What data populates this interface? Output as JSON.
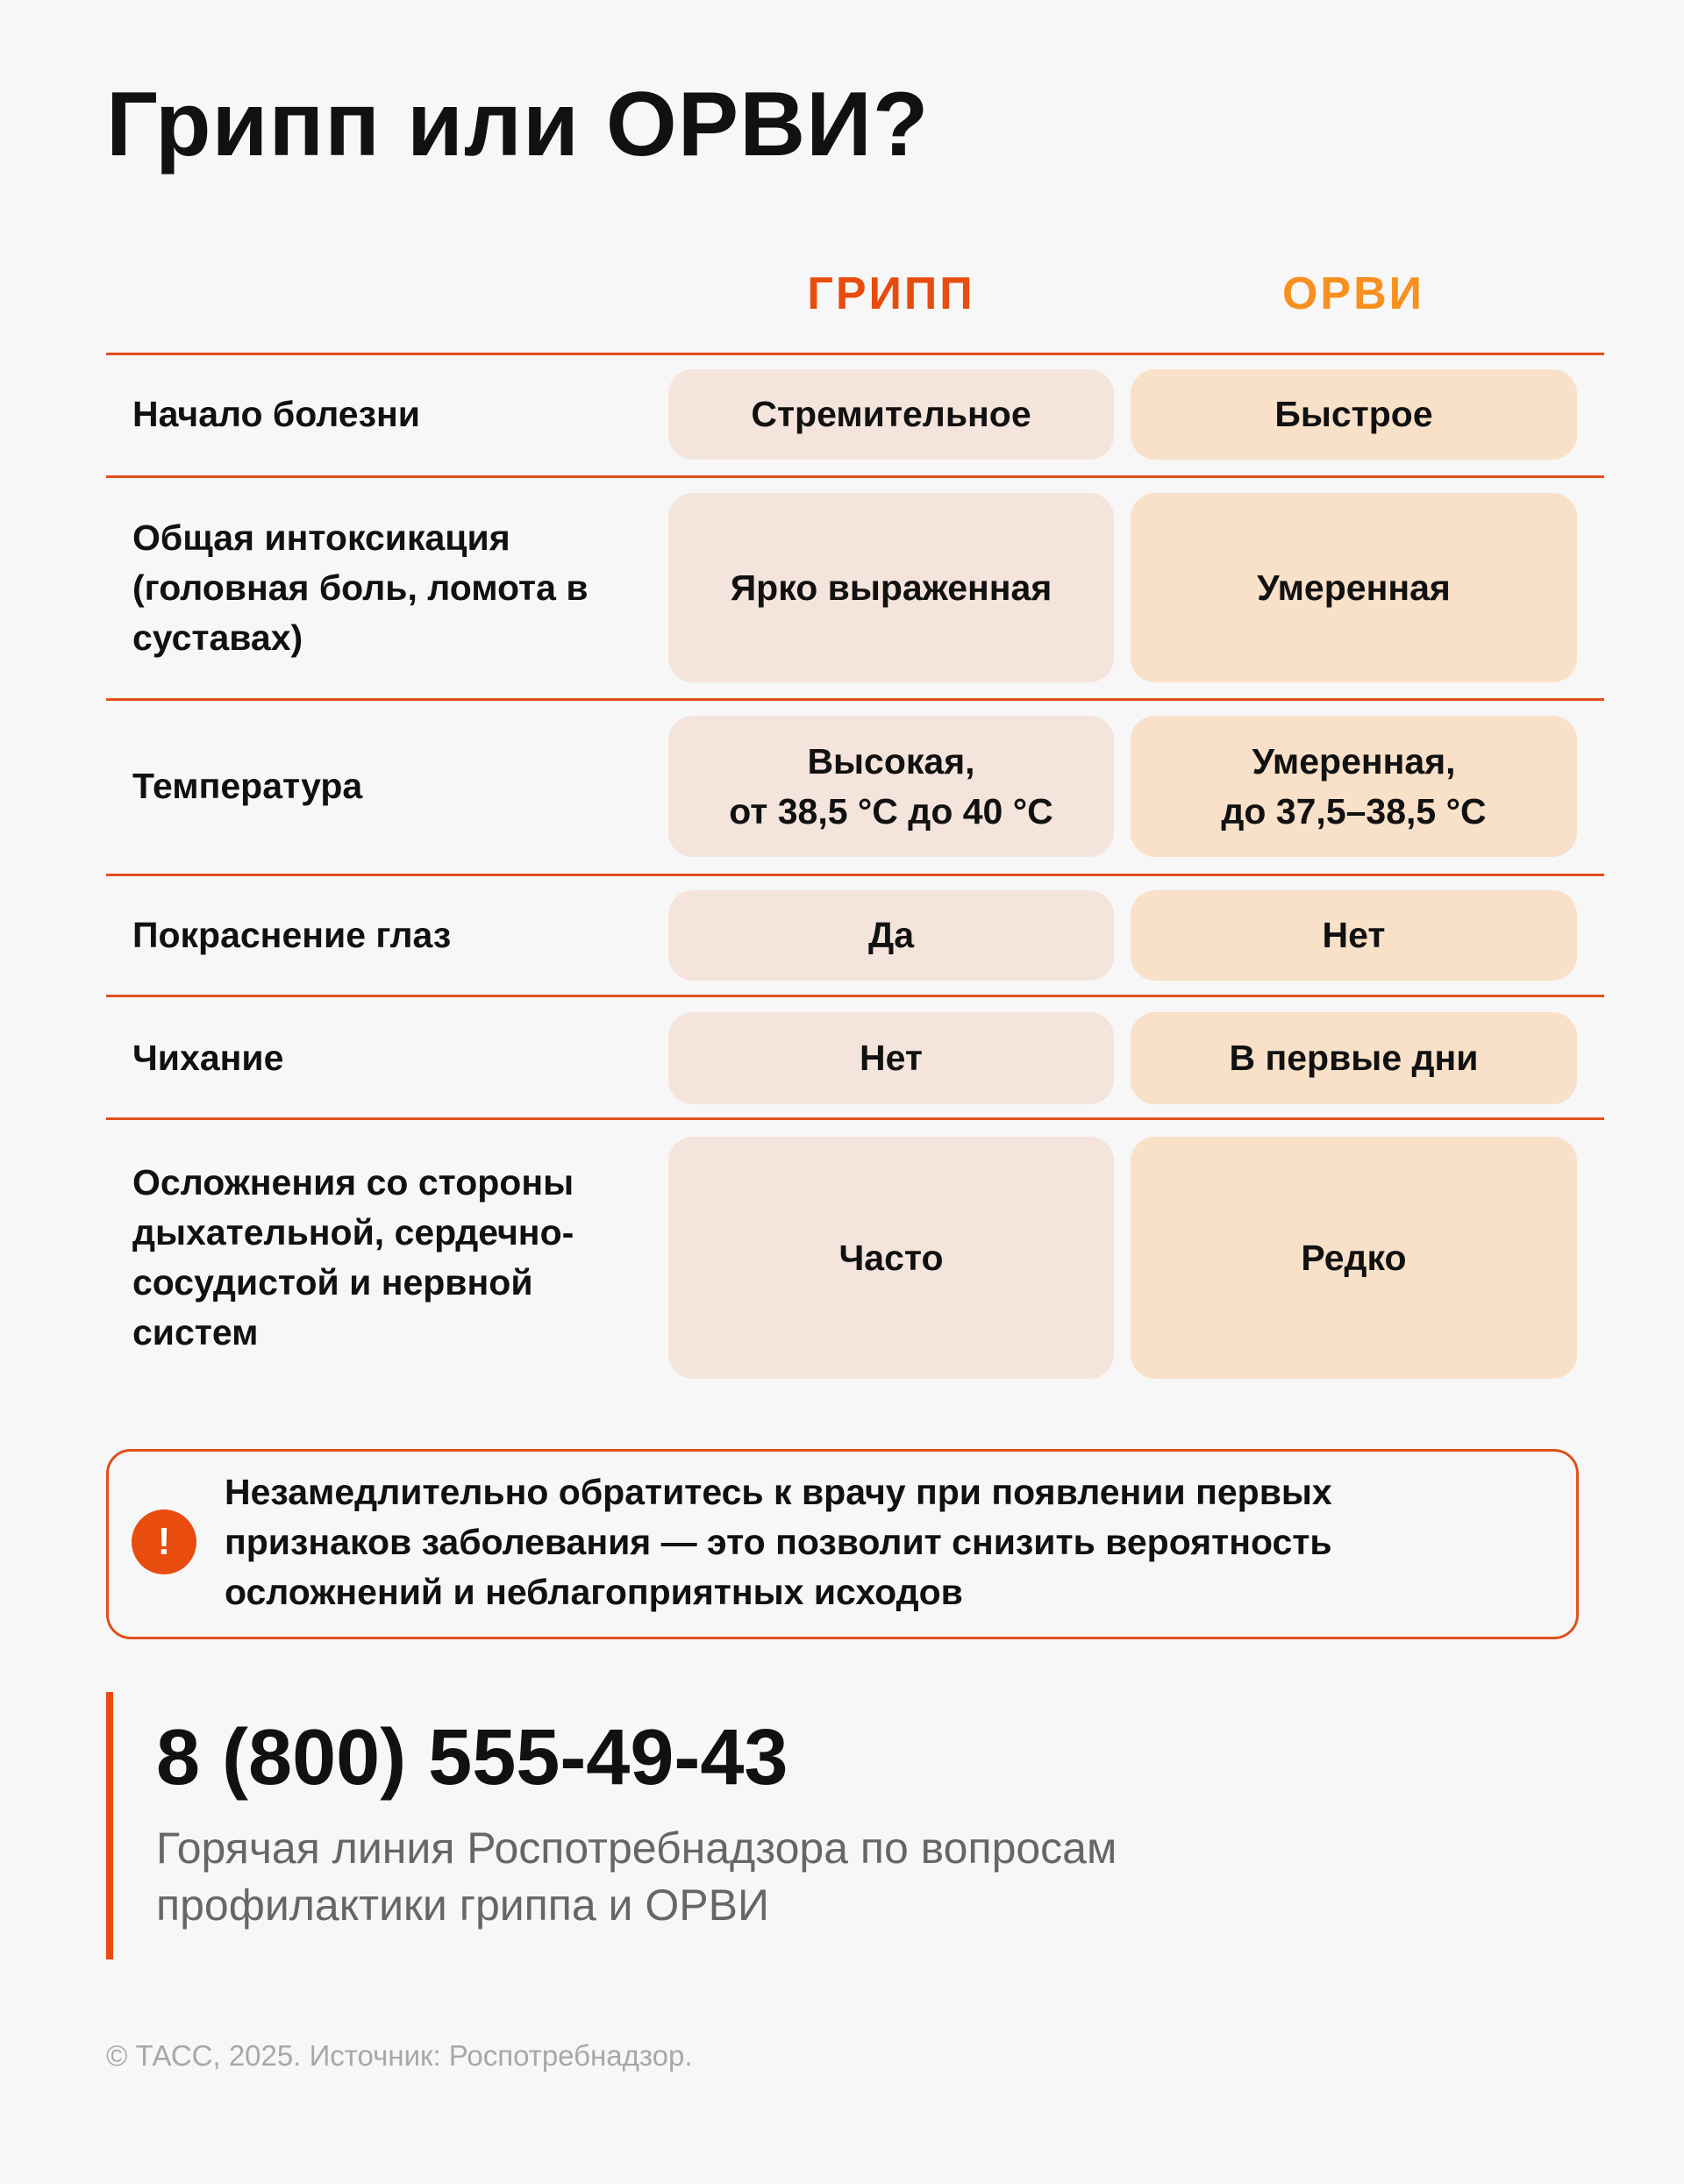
{
  "title": "Грипп или ОРВИ?",
  "columns": {
    "flu": {
      "label": "ГРИПП",
      "color": "#e84c0e",
      "cell_color": "#f5e4dc"
    },
    "arvi": {
      "label": "ОРВИ",
      "color": "#f7901e",
      "cell_color": "#f9e0c8"
    }
  },
  "rows": [
    {
      "label": "Начало болезни",
      "flu": "Стремительное",
      "arvi": "Быстрое"
    },
    {
      "label": "Общая интоксикация (головная боль, ломота в суставах)",
      "flu": "Ярко выраженная",
      "arvi": "Умеренная"
    },
    {
      "label": "Температура",
      "flu": "Высокая,\nот 38,5 °C до 40 °C",
      "arvi": "Умеренная,\nдо 37,5–38,5 °C"
    },
    {
      "label": "Покраснение глаз",
      "flu": "Да",
      "arvi": "Нет"
    },
    {
      "label": "Чихание",
      "flu": "Нет",
      "arvi": "В первые дни"
    },
    {
      "label": "Осложнения со стороны дыхательной, сердечно-сосудистой и нервной систем",
      "flu": "Часто",
      "arvi": "Редко"
    }
  ],
  "alert": {
    "icon": "exclamation-icon",
    "icon_glyph": "!",
    "text": "Незамедлительно обратитесь к врачу при появлении первых признаков заболевания — это позволит снизить вероятность осложнений и неблагоприятных исходов"
  },
  "hotline": {
    "phone": "8 (800) 555-49-43",
    "description": "Горячая линия Роспотребнадзора по вопросам профилактики гриппа и ОРВИ"
  },
  "footer": "© ТАСС, 2025. Источник: Роспотребнадзор.",
  "accent_color": "#e0501a"
}
